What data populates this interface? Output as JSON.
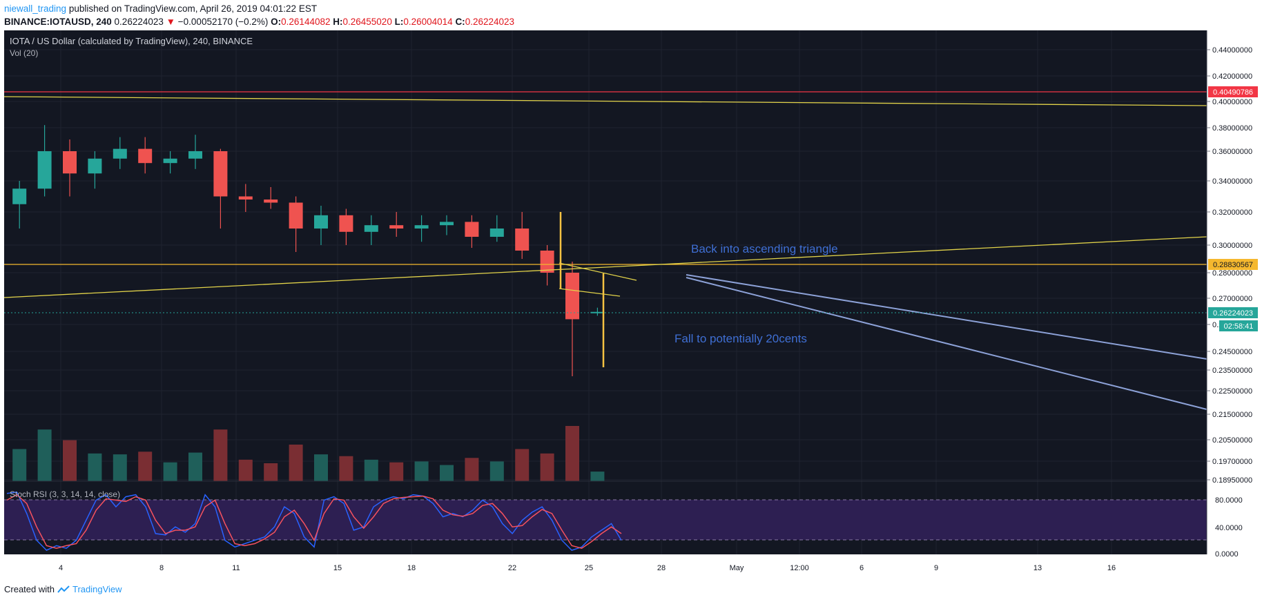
{
  "header": {
    "author": "niewall_trading",
    "published": "published on TradingView.com, April 26, 2019 04:01:22 EST",
    "symbol": "BINANCE:IOTAUSD, 240",
    "last": "0.26224023",
    "arrow": "▼",
    "change": "−0.00052170 (−0.2%)",
    "o_label": "O:",
    "o_value": "0.26144082",
    "h_label": "H:",
    "h_value": "0.26455020",
    "l_label": "L:",
    "l_value": "0.26004014",
    "c_label": "C:",
    "c_value": "0.26224023"
  },
  "footer": {
    "created_with": "Created with",
    "brand": "TradingView"
  },
  "chart_data": [
    {
      "type": "candlestick",
      "title": "IOTA / US Dollar (calculated by TradingView), 240, BINANCE",
      "y_axis_ticks": [
        "0.44000000",
        "0.42000000",
        "0.40000000",
        "0.38000000",
        "0.36000000",
        "0.34000000",
        "0.32000000",
        "0.30000000",
        "0.28000000",
        "0.27000000",
        "0.25500000",
        "0.24500000",
        "0.23500000",
        "0.22500000",
        "0.21500000",
        "0.20500000",
        "0.19700000",
        "0.18950000"
      ],
      "price_marks": [
        {
          "label": "0.40490786",
          "color": "#f23645",
          "value": 0.40490786
        },
        {
          "label": "0.28830567",
          "color": "#f5b82e",
          "value": 0.28830567
        },
        {
          "label": "0.26224023",
          "color": "#26a69a",
          "value": 0.26224023
        }
      ],
      "countdown": "02:58:41",
      "x_axis_ticks": [
        "4",
        "8",
        "11",
        "15",
        "18",
        "22",
        "25",
        "28",
        "May",
        "12:00",
        "6",
        "9",
        "13",
        "16"
      ],
      "annotations": [
        "Back into ascending triangle",
        "Fall to potentially 20cents"
      ],
      "daily_approx": [
        {
          "date": "Apr 3",
          "open": 0.325,
          "high": 0.34,
          "low": 0.31,
          "close": 0.335
        },
        {
          "date": "Apr 4",
          "open": 0.335,
          "high": 0.382,
          "low": 0.33,
          "close": 0.36
        },
        {
          "date": "Apr 5",
          "open": 0.36,
          "high": 0.37,
          "low": 0.33,
          "close": 0.345
        },
        {
          "date": "Apr 6",
          "open": 0.345,
          "high": 0.36,
          "low": 0.335,
          "close": 0.355
        },
        {
          "date": "Apr 7",
          "open": 0.355,
          "high": 0.372,
          "low": 0.348,
          "close": 0.362
        },
        {
          "date": "Apr 8",
          "open": 0.362,
          "high": 0.372,
          "low": 0.345,
          "close": 0.352
        },
        {
          "date": "Apr 9",
          "open": 0.352,
          "high": 0.36,
          "low": 0.345,
          "close": 0.355
        },
        {
          "date": "Apr 10",
          "open": 0.355,
          "high": 0.374,
          "low": 0.348,
          "close": 0.36
        },
        {
          "date": "Apr 11",
          "open": 0.36,
          "high": 0.362,
          "low": 0.31,
          "close": 0.33
        },
        {
          "date": "Apr 12",
          "open": 0.33,
          "high": 0.338,
          "low": 0.32,
          "close": 0.328
        },
        {
          "date": "Apr 13",
          "open": 0.328,
          "high": 0.336,
          "low": 0.322,
          "close": 0.326
        },
        {
          "date": "Apr 14",
          "open": 0.326,
          "high": 0.33,
          "low": 0.295,
          "close": 0.31
        },
        {
          "date": "Apr 15",
          "open": 0.31,
          "high": 0.324,
          "low": 0.3,
          "close": 0.318
        },
        {
          "date": "Apr 16",
          "open": 0.318,
          "high": 0.322,
          "low": 0.3,
          "close": 0.308
        },
        {
          "date": "Apr 17",
          "open": 0.308,
          "high": 0.318,
          "low": 0.3,
          "close": 0.312
        },
        {
          "date": "Apr 18",
          "open": 0.312,
          "high": 0.32,
          "low": 0.305,
          "close": 0.31
        },
        {
          "date": "Apr 19",
          "open": 0.31,
          "high": 0.318,
          "low": 0.302,
          "close": 0.312
        },
        {
          "date": "Apr 20",
          "open": 0.312,
          "high": 0.318,
          "low": 0.306,
          "close": 0.314
        },
        {
          "date": "Apr 21",
          "open": 0.314,
          "high": 0.318,
          "low": 0.298,
          "close": 0.305
        },
        {
          "date": "Apr 22",
          "open": 0.305,
          "high": 0.318,
          "low": 0.302,
          "close": 0.31
        },
        {
          "date": "Apr 23",
          "open": 0.31,
          "high": 0.32,
          "low": 0.29,
          "close": 0.296
        },
        {
          "date": "Apr 24",
          "open": 0.296,
          "high": 0.3,
          "low": 0.275,
          "close": 0.28
        },
        {
          "date": "Apr 25",
          "open": 0.28,
          "high": 0.288,
          "low": 0.232,
          "close": 0.258
        },
        {
          "date": "Apr 26",
          "open": 0.2614,
          "high": 0.2646,
          "low": 0.26,
          "close": 0.2622
        }
      ]
    },
    {
      "type": "bar",
      "title": "Vol (20)"
    },
    {
      "type": "line",
      "title": "Stoch RSI (3, 3, 14, 14, close)",
      "y_axis_ticks": [
        "80.0000",
        "40.0000",
        "0.0000"
      ],
      "band": [
        20,
        80
      ],
      "series": [
        {
          "color": "#2962ff",
          "values": [
            90,
            92,
            60,
            20,
            5,
            12,
            8,
            20,
            50,
            80,
            88,
            70,
            85,
            88,
            70,
            30,
            28,
            40,
            32,
            45,
            88,
            70,
            20,
            10,
            15,
            20,
            25,
            40,
            70,
            60,
            25,
            10,
            80,
            85,
            75,
            35,
            40,
            70,
            80,
            85,
            82,
            88,
            86,
            75,
            55,
            60,
            55,
            65,
            80,
            70,
            45,
            30,
            50,
            62,
            70,
            50,
            20,
            5,
            10,
            25,
            35,
            45,
            20
          ]
        },
        {
          "color": "#f7525f",
          "values": [
            80,
            88,
            75,
            40,
            12,
            8,
            12,
            15,
            35,
            65,
            82,
            80,
            78,
            85,
            80,
            50,
            30,
            35,
            35,
            40,
            70,
            80,
            45,
            15,
            12,
            15,
            22,
            32,
            55,
            65,
            45,
            20,
            60,
            82,
            80,
            55,
            38,
            55,
            75,
            82,
            84,
            85,
            86,
            82,
            65,
            58,
            56,
            60,
            72,
            75,
            60,
            40,
            42,
            55,
            66,
            60,
            35,
            12,
            8,
            18,
            30,
            40,
            30
          ]
        }
      ]
    }
  ]
}
